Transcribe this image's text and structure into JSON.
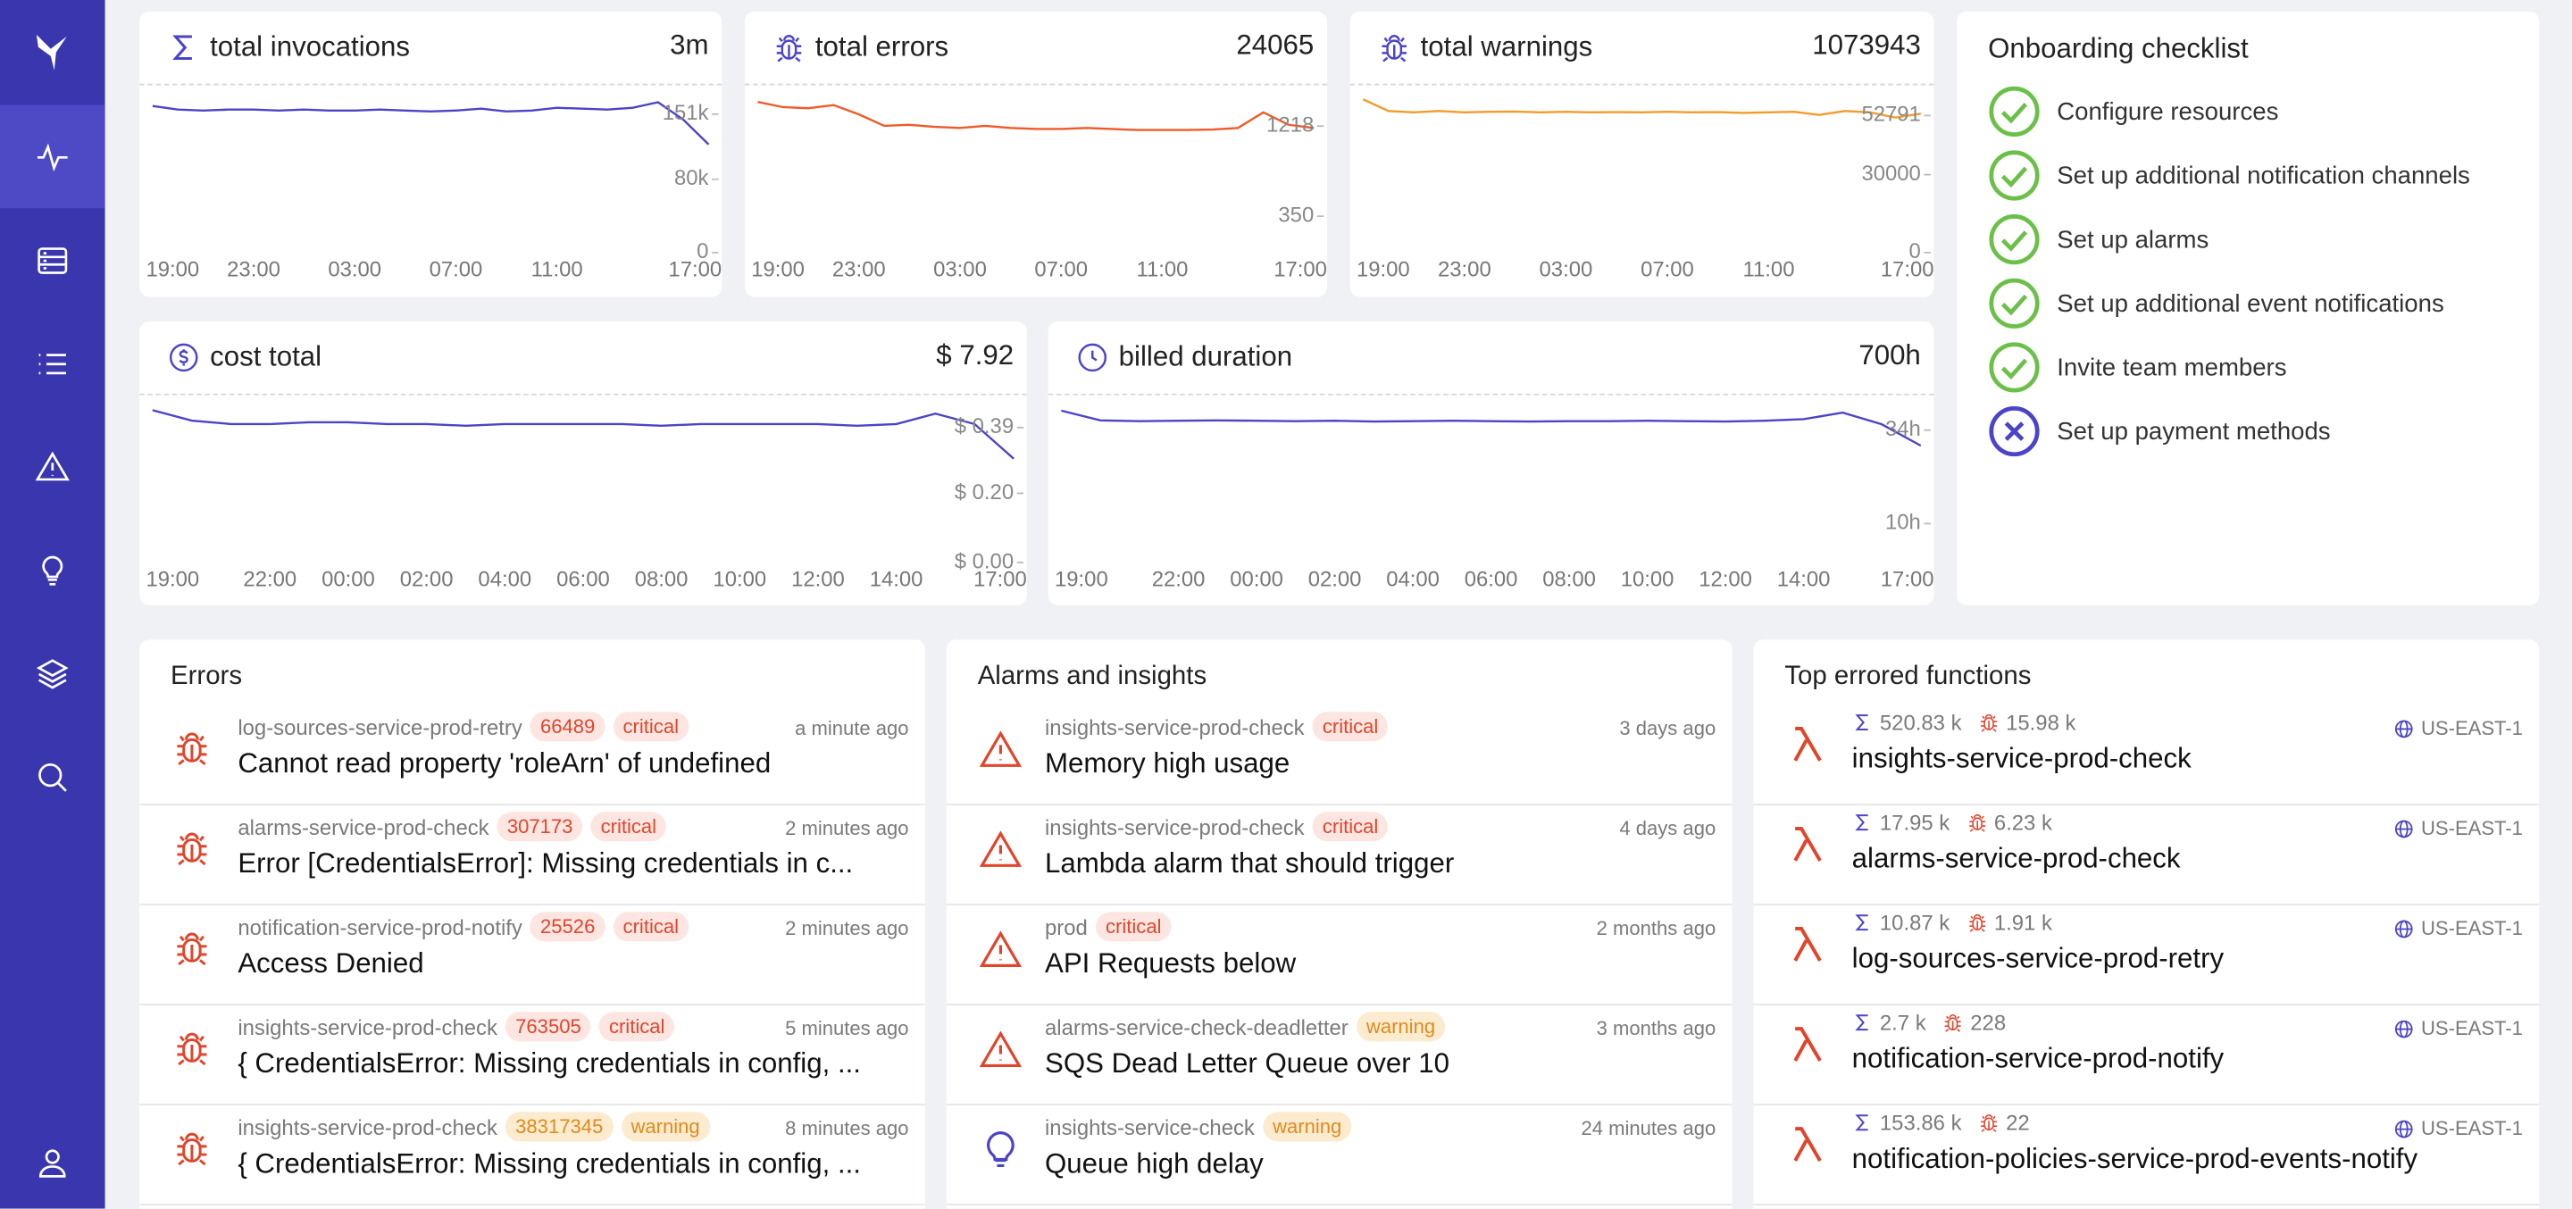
{
  "charts": [
    {
      "icon": "sigma",
      "title": "total invocations",
      "total": "3m",
      "chart": {
        "type": "line",
        "color": "#4b44c7",
        "categories": [
          "19:00",
          null,
          null,
          null,
          "23:00",
          null,
          null,
          null,
          "03:00",
          null,
          null,
          null,
          "07:00",
          null,
          null,
          null,
          "11:00",
          null,
          null,
          null,
          null,
          null,
          "17:00"
        ],
        "values": [
          160000,
          156000,
          155000,
          156000,
          156000,
          155000,
          156000,
          155000,
          155000,
          156000,
          155000,
          154000,
          155000,
          157000,
          154000,
          155000,
          158000,
          157000,
          156000,
          158000,
          164000,
          145000,
          118000
        ],
        "ylim": [
          0,
          170000
        ],
        "yticks": [
          0,
          {
            "value": 80000,
            "label": "80k"
          },
          {
            "value": 151000,
            "label": "151k"
          }
        ]
      }
    },
    {
      "icon": "bug",
      "title": "total errors",
      "total": 24065,
      "chart": {
        "type": "line",
        "color": "#ef5a28",
        "categories": [
          "19:00",
          null,
          null,
          null,
          "23:00",
          null,
          null,
          null,
          "03:00",
          null,
          null,
          null,
          "07:00",
          null,
          null,
          null,
          "11:00",
          null,
          null,
          null,
          null,
          null,
          "17:00"
        ],
        "values": [
          1450,
          1400,
          1390,
          1420,
          1330,
          1220,
          1230,
          1210,
          1200,
          1220,
          1200,
          1190,
          1190,
          1200,
          1190,
          1180,
          1180,
          1180,
          1185,
          1200,
          1350,
          1230,
          1200
        ],
        "ylim": [
          0,
          1500
        ],
        "yticks": [
          350,
          1218
        ]
      }
    },
    {
      "icon": "bug",
      "title": "total warnings",
      "total": 1073943,
      "chart": {
        "type": "line",
        "color": "#f39c2b",
        "categories": [
          "19:00",
          null,
          null,
          null,
          "23:00",
          null,
          null,
          null,
          "03:00",
          null,
          null,
          null,
          "07:00",
          null,
          null,
          null,
          "11:00",
          null,
          null,
          null,
          null,
          null,
          "17:00"
        ],
        "values": [
          59000,
          54500,
          54000,
          54500,
          54000,
          54200,
          54300,
          54000,
          54200,
          54000,
          54100,
          54000,
          54200,
          54000,
          54100,
          53800,
          54000,
          54200,
          53000,
          54500,
          54000,
          52000,
          53500
        ],
        "ylim": [
          0,
          60000
        ],
        "yticks": [
          0,
          30000,
          52791
        ]
      }
    },
    {
      "icon": "dollar",
      "title": "cost total",
      "total": "$ 7.92",
      "chart": {
        "type": "line",
        "color": "#4b44c7",
        "categories": [
          "19:00",
          null,
          null,
          "22:00",
          null,
          "00:00",
          null,
          "02:00",
          null,
          "04:00",
          null,
          "06:00",
          null,
          "08:00",
          null,
          "10:00",
          null,
          "12:00",
          null,
          "14:00",
          null,
          null,
          "17:00"
        ],
        "values": [
          0.44,
          0.41,
          0.4,
          0.4,
          0.405,
          0.405,
          0.4,
          0.4,
          0.395,
          0.4,
          0.4,
          0.4,
          0.4,
          0.395,
          0.4,
          0.4,
          0.4,
          0.4,
          0.395,
          0.4,
          0.43,
          0.4,
          0.3
        ],
        "ylim": [
          0,
          0.45
        ],
        "yticks": [
          {
            "value": 0,
            "label": "$ 0.00"
          },
          {
            "value": 0.2,
            "label": "$ 0.20"
          },
          {
            "value": 0.39,
            "label": "$ 0.39"
          }
        ]
      }
    },
    {
      "icon": "clock",
      "title": "billed duration",
      "total": "700h",
      "chart": {
        "type": "line",
        "color": "#4b44c7",
        "categories": [
          "19:00",
          null,
          null,
          "22:00",
          null,
          "00:00",
          null,
          "02:00",
          null,
          "04:00",
          null,
          "06:00",
          null,
          "08:00",
          null,
          "10:00",
          null,
          "12:00",
          null,
          "14:00",
          null,
          null,
          "17:00"
        ],
        "values": [
          39,
          36.5,
          36.3,
          36.4,
          36.5,
          36.4,
          36.3,
          36.4,
          36.2,
          36.3,
          36.4,
          36.3,
          36.2,
          36.3,
          36.3,
          36.4,
          36.3,
          36.2,
          36.4,
          36.8,
          38.5,
          35.5,
          30
        ],
        "ylim": [
          0,
          40
        ],
        "yticks": [
          {
            "value": 10,
            "label": "10h"
          },
          {
            "value": 34,
            "label": "34h"
          }
        ]
      }
    }
  ],
  "checklist": {
    "title": "Onboarding checklist",
    "items": [
      {
        "label": "Configure resources",
        "done": true
      },
      {
        "label": "Set up additional notification channels",
        "done": true
      },
      {
        "label": "Set up alarms",
        "done": true
      },
      {
        "label": "Set up additional event notifications",
        "done": true
      },
      {
        "label": "Invite team members",
        "done": true
      },
      {
        "label": "Set up payment methods",
        "done": false
      }
    ]
  },
  "errors": {
    "title": "Errors",
    "items": [
      {
        "source": "log-sources-service-prod-retry",
        "count": 66489,
        "severity": "critical",
        "message": "Cannot read property 'roleArn' of undefined",
        "time": "a minute ago"
      },
      {
        "source": "alarms-service-prod-check",
        "count": 307173,
        "severity": "critical",
        "message": "Error [CredentialsError]: Missing credentials in c...",
        "time": "2 minutes ago"
      },
      {
        "source": "notification-service-prod-notify",
        "count": 25526,
        "severity": "critical",
        "message": "Access Denied",
        "time": "2 minutes ago"
      },
      {
        "source": "insights-service-prod-check",
        "count": 763505,
        "severity": "critical",
        "message": "{ CredentialsError: Missing credentials in config, ...",
        "time": "5 minutes ago"
      },
      {
        "source": "insights-service-prod-check",
        "count": 38317345,
        "severity": "warning",
        "message": "{ CredentialsError: Missing credentials in config, ...",
        "time": "8 minutes ago"
      }
    ]
  },
  "alarms": {
    "title": "Alarms and insights",
    "items": [
      {
        "kind": "alarm",
        "source": "insights-service-prod-check",
        "severity": "critical",
        "title": "Memory high usage",
        "time": "3 days ago"
      },
      {
        "kind": "alarm",
        "source": "insights-service-prod-check",
        "severity": "critical",
        "title": "Lambda alarm that should trigger",
        "time": "4 days ago"
      },
      {
        "kind": "alarm",
        "source": "prod",
        "severity": "critical",
        "title": "API Requests below",
        "time": "2 months ago"
      },
      {
        "kind": "alarm",
        "source": "alarms-service-check-deadletter",
        "severity": "warning",
        "title": "SQS Dead Letter Queue over 10",
        "time": "3 months ago"
      },
      {
        "kind": "insight",
        "source": "insights-service-check",
        "severity": "warning",
        "title": "Queue high delay",
        "time": "24 minutes ago"
      }
    ]
  },
  "functions": {
    "title": "Top errored functions",
    "items": [
      {
        "invocations": "520.83 k",
        "errors": "15.98 k",
        "name": "insights-service-prod-check",
        "region": "US-EAST-1"
      },
      {
        "invocations": "17.95 k",
        "errors": "6.23 k",
        "name": "alarms-service-prod-check",
        "region": "US-EAST-1"
      },
      {
        "invocations": "10.87 k",
        "errors": "1.91 k",
        "name": "log-sources-service-prod-retry",
        "region": "US-EAST-1"
      },
      {
        "invocations": "2.7 k",
        "errors": "228",
        "name": "notification-service-prod-notify",
        "region": "US-EAST-1"
      },
      {
        "invocations": "153.86 k",
        "errors": "22",
        "name": "notification-policies-service-prod-events-notify",
        "region": "US-EAST-1"
      }
    ]
  }
}
